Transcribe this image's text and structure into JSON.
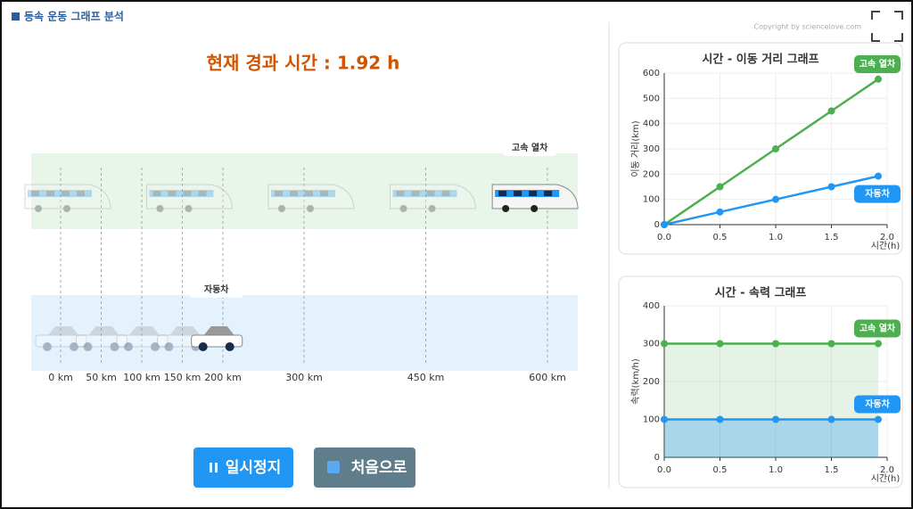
{
  "header": {
    "title": "등속 운동 그래프 분석",
    "copyright": "Copyright by sciencelove.com"
  },
  "status": "현재 경과 시간 : 1.92 h",
  "simulation": {
    "scale": [
      {
        "value": 0,
        "label": "0 km"
      },
      {
        "value": 50,
        "label": "50 km"
      },
      {
        "value": 100,
        "label": "100 km"
      },
      {
        "value": 150,
        "label": "150 km"
      },
      {
        "value": 200,
        "label": "200 km"
      },
      {
        "value": 300,
        "label": "300 km"
      },
      {
        "value": 450,
        "label": "450 km"
      },
      {
        "value": 600,
        "label": "600 km"
      }
    ],
    "xlim": [
      0,
      600
    ],
    "train": {
      "label": "고속 열차",
      "snapshots": [
        0,
        150,
        300,
        450
      ],
      "position": 576
    },
    "car": {
      "label": "자동차",
      "snapshots": [
        0,
        50,
        100,
        150
      ],
      "position": 192
    }
  },
  "controls": {
    "pause": "일시정지",
    "reset": "처음으로"
  },
  "chart_data": [
    {
      "type": "line",
      "title": "시간 - 이동 거리 그래프",
      "x_label": "시간(h)",
      "y_label": "이동 거리(km)",
      "x": [
        0,
        0.5,
        1,
        1.5,
        1.92
      ],
      "xlim": [
        0,
        2
      ],
      "xticks": [
        {
          "value": 0,
          "label": "0.0"
        },
        0.5,
        {
          "value": 1,
          "label": "1.0"
        },
        1.5,
        {
          "value": 2,
          "label": "2.0"
        }
      ],
      "ylim": [
        0,
        600
      ],
      "yticks": [
        0,
        100,
        200,
        300,
        400,
        500,
        600
      ],
      "grid": true,
      "series": [
        {
          "name": "고속 열차",
          "color": "#4caf50",
          "values": [
            0,
            150,
            300,
            450,
            576
          ]
        },
        {
          "name": "자동차",
          "color": "#2196f3",
          "values": [
            0,
            50,
            100,
            150,
            192
          ]
        }
      ]
    },
    {
      "type": "area",
      "title": "시간 - 속력 그래프",
      "x_label": "시간(h)",
      "y_label": "속력(km/h)",
      "x": [
        0,
        0.5,
        1,
        1.5,
        1.92
      ],
      "xlim": [
        0,
        2
      ],
      "xticks": [
        {
          "value": 0,
          "label": "0.0"
        },
        0.5,
        {
          "value": 1,
          "label": "1.0"
        },
        1.5,
        {
          "value": 2,
          "label": "2.0"
        }
      ],
      "ylim": [
        0,
        400
      ],
      "yticks": [
        0,
        100,
        200,
        300,
        400
      ],
      "grid": true,
      "series": [
        {
          "name": "고속 열차",
          "color": "#4caf50",
          "values": [
            300,
            300,
            300,
            300,
            300
          ]
        },
        {
          "name": "자동차",
          "color": "#2196f3",
          "values": [
            100,
            100,
            100,
            100,
            100
          ]
        }
      ]
    }
  ]
}
